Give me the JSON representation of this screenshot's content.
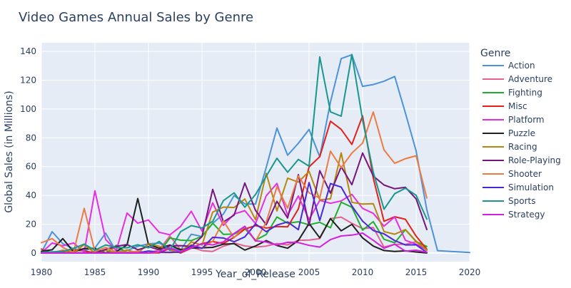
{
  "chart_data": {
    "type": "line",
    "title": "Video Games Annual Sales by Genre",
    "xlabel": "Year_of_Release",
    "ylabel": "Global Sales (in Millions)",
    "xlim": [
      1980,
      2020
    ],
    "ylim": [
      -6,
      146
    ],
    "xticks": [
      1980,
      1985,
      1990,
      1995,
      2000,
      2005,
      2010,
      2015,
      2020
    ],
    "yticks": [
      0,
      20,
      40,
      60,
      80,
      100,
      120,
      140
    ],
    "grid": true,
    "legend_title": "Genre",
    "legend_position": "right",
    "plot_background": "#E5ECF6",
    "series": [
      {
        "name": "Action",
        "color": "#4C92D8",
        "x": [
          1980,
          1981,
          1982,
          1983,
          1984,
          1985,
          1986,
          1987,
          1988,
          1989,
          1990,
          1991,
          1992,
          1993,
          1994,
          1995,
          1996,
          1997,
          1998,
          1999,
          2000,
          2001,
          2002,
          2003,
          2004,
          2005,
          2006,
          2007,
          2008,
          2009,
          2010,
          2011,
          2012,
          2013,
          2014,
          2015,
          2016,
          2017,
          2020
        ],
        "y": [
          0.3,
          14.8,
          6.5,
          2.9,
          1.8,
          3.5,
          13.8,
          1.1,
          1.7,
          4.6,
          6.4,
          6.8,
          3.5,
          1.9,
          13,
          11.5,
          20.6,
          27,
          39.9,
          34.1,
          34,
          59.4,
          86.8,
          67.9,
          76.2,
          85.8,
          66.8,
          104.9,
          135,
          137.7,
          115.7,
          117,
          119.3,
          122.6,
          97.2,
          70.9,
          30,
          1.6,
          0.3
        ]
      },
      {
        "name": "Adventure",
        "color": "#E8608F",
        "x": [
          1980,
          1981,
          1982,
          1983,
          1984,
          1985,
          1986,
          1987,
          1988,
          1989,
          1990,
          1991,
          1992,
          1993,
          1994,
          1995,
          1996,
          1997,
          1998,
          1999,
          2000,
          2001,
          2002,
          2003,
          2004,
          2005,
          2006,
          2007,
          2008,
          2009,
          2010,
          2011,
          2012,
          2013,
          2014,
          2015,
          2016
        ],
        "y": [
          0,
          0,
          1.9,
          0.4,
          0,
          0,
          0,
          4.4,
          0.2,
          0,
          0,
          2.2,
          11.8,
          2.3,
          4.2,
          1.6,
          1.1,
          4.7,
          6.9,
          4.9,
          4.1,
          4.8,
          6.6,
          5.6,
          8.8,
          9,
          10,
          23.9,
          24.9,
          20.6,
          16.9,
          17.7,
          4.1,
          6,
          6,
          7.8,
          1.8
        ]
      },
      {
        "name": "Fighting",
        "color": "#1FAF2A",
        "x": [
          1980,
          1981,
          1982,
          1983,
          1984,
          1985,
          1986,
          1987,
          1988,
          1989,
          1990,
          1991,
          1992,
          1993,
          1994,
          1995,
          1996,
          1997,
          1998,
          1999,
          2000,
          2001,
          2002,
          2003,
          2004,
          2005,
          2006,
          2007,
          2008,
          2009,
          2010,
          2011,
          2012,
          2013,
          2014,
          2015,
          2016
        ],
        "y": [
          0.8,
          0,
          0,
          0,
          0,
          1,
          0,
          5.4,
          0,
          0,
          0,
          0.4,
          10.4,
          8.9,
          8.6,
          11.6,
          20.7,
          12.9,
          13.1,
          16.9,
          8.9,
          12.8,
          25,
          20.7,
          21.7,
          19.6,
          21.3,
          17.5,
          35.3,
          31.8,
          15.9,
          21.8,
          9.5,
          7.1,
          16.2,
          7.9,
          4.5
        ]
      },
      {
        "name": "Misc",
        "color": "#E3201B",
        "x": [
          1980,
          1981,
          1982,
          1983,
          1984,
          1985,
          1986,
          1987,
          1988,
          1989,
          1990,
          1991,
          1992,
          1993,
          1994,
          1995,
          1996,
          1997,
          1998,
          1999,
          2000,
          2001,
          2002,
          2003,
          2004,
          2005,
          2006,
          2007,
          2008,
          2009,
          2010,
          2011,
          2012,
          2013,
          2014,
          2015,
          2016
        ],
        "y": [
          2.7,
          0,
          0.9,
          2.1,
          1.5,
          0,
          0,
          0,
          0,
          1.3,
          0,
          0,
          3.2,
          0,
          3.3,
          6.6,
          7.9,
          6.6,
          10.9,
          16.6,
          19,
          17.3,
          18.4,
          18.1,
          30.6,
          59.8,
          66.9,
          91.5,
          85.9,
          75.4,
          95.2,
          52,
          22,
          25.2,
          23.4,
          11.7,
          2.6
        ]
      },
      {
        "name": "Platform",
        "color": "#E52DE1",
        "x": [
          1980,
          1981,
          1982,
          1983,
          1984,
          1985,
          1986,
          1987,
          1988,
          1989,
          1990,
          1991,
          1992,
          1993,
          1994,
          1995,
          1996,
          1997,
          1998,
          1999,
          2000,
          2001,
          2002,
          2003,
          2004,
          2005,
          2006,
          2007,
          2008,
          2009,
          2010,
          2011,
          2012,
          2013,
          2014,
          2015,
          2016
        ],
        "y": [
          0,
          6.9,
          5,
          6.9,
          0.7,
          43.2,
          9.4,
          1.7,
          27.7,
          20.7,
          22.9,
          14.4,
          12.6,
          18.4,
          29,
          15.2,
          34.8,
          19.2,
          27,
          29.4,
          20.4,
          39.7,
          48.3,
          26.3,
          39.6,
          23.2,
          36.6,
          34.5,
          36.2,
          40.7,
          31,
          27.5,
          18.6,
          25,
          8.8,
          6.1,
          2.2
        ]
      },
      {
        "name": "Puzzle",
        "color": "#1F1F1F",
        "x": [
          1980,
          1981,
          1982,
          1983,
          1984,
          1985,
          1986,
          1987,
          1988,
          1989,
          1990,
          1991,
          1992,
          1993,
          1994,
          1995,
          1996,
          1997,
          1998,
          1999,
          2000,
          2001,
          2002,
          2003,
          2004,
          2005,
          2006,
          2007,
          2008,
          2009,
          2010,
          2011,
          2012,
          2013,
          2014,
          2015,
          2016
        ],
        "y": [
          1.2,
          2.2,
          10,
          0.8,
          3.1,
          3.2,
          0,
          1.1,
          5.6,
          37.8,
          6,
          3.3,
          5.5,
          2.2,
          3.4,
          3.6,
          3.9,
          6.1,
          6.5,
          2,
          4.9,
          8.6,
          5.2,
          3.3,
          8.7,
          20.5,
          10.5,
          23.9,
          15.4,
          19.9,
          10.5,
          4.8,
          1.7,
          1.1,
          1.5,
          0.7,
          0
        ]
      },
      {
        "name": "Racing",
        "color": "#B8860B",
        "x": [
          1980,
          1981,
          1982,
          1983,
          1984,
          1985,
          1986,
          1987,
          1988,
          1989,
          1990,
          1991,
          1992,
          1993,
          1994,
          1995,
          1996,
          1997,
          1998,
          1999,
          2000,
          2001,
          2002,
          2003,
          2004,
          2005,
          2006,
          2007,
          2008,
          2009,
          2010,
          2011,
          2012,
          2013,
          2014,
          2015,
          2016
        ],
        "y": [
          0,
          0.5,
          1.6,
          0,
          5.9,
          0,
          1.9,
          0,
          2.1,
          0,
          6.3,
          4.7,
          1.9,
          0.4,
          7.7,
          5.5,
          28.4,
          31.9,
          31.6,
          37.5,
          23.1,
          55.3,
          29.2,
          52,
          49.2,
          56.7,
          36.9,
          37.6,
          69.5,
          35.2,
          34,
          34.2,
          14.9,
          13,
          16.3,
          8.2,
          2
        ]
      },
      {
        "name": "Role-Playing",
        "color": "#74167D",
        "x": [
          1980,
          1981,
          1982,
          1983,
          1984,
          1985,
          1986,
          1987,
          1988,
          1989,
          1990,
          1991,
          1992,
          1993,
          1994,
          1995,
          1996,
          1997,
          1998,
          1999,
          2000,
          2001,
          2002,
          2003,
          2004,
          2005,
          2006,
          2007,
          2008,
          2009,
          2010,
          2011,
          2012,
          2013,
          2014,
          2015,
          2016
        ],
        "y": [
          0,
          0,
          0,
          0,
          0,
          0,
          2.5,
          4.6,
          5.9,
          2.2,
          4.5,
          2.2,
          5,
          5.1,
          4.6,
          11.4,
          44.2,
          21.6,
          26.3,
          48.6,
          29.6,
          19.6,
          35.9,
          24.3,
          54.4,
          19.1,
          57.2,
          41.6,
          59.9,
          47.4,
          69.4,
          53.4,
          47.2,
          44.6,
          45.6,
          37.6,
          16.3
        ]
      },
      {
        "name": "Shooter",
        "color": "#EC7B43",
        "x": [
          1980,
          1981,
          1982,
          1983,
          1984,
          1985,
          1986,
          1987,
          1988,
          1989,
          1990,
          1991,
          1992,
          1993,
          1994,
          1995,
          1996,
          1997,
          1998,
          1999,
          2000,
          2001,
          2002,
          2003,
          2004,
          2005,
          2006,
          2007,
          2008,
          2009,
          2010,
          2011,
          2012,
          2013,
          2014,
          2015,
          2016
        ],
        "y": [
          7.1,
          10,
          3.8,
          0.5,
          31,
          1,
          3.9,
          0.7,
          0.5,
          1.2,
          0,
          0.4,
          0.2,
          0.8,
          5.7,
          3.4,
          8.1,
          22.2,
          10.6,
          18.5,
          8.1,
          21.4,
          46.1,
          31.2,
          53.5,
          41.8,
          38.1,
          70.7,
          59.3,
          69.4,
          76.3,
          97.9,
          71.6,
          62.3,
          65.5,
          67.5,
          38.2
        ]
      },
      {
        "name": "Simulation",
        "color": "#4926D8",
        "x": [
          1980,
          1981,
          1982,
          1983,
          1984,
          1985,
          1986,
          1987,
          1988,
          1989,
          1990,
          1991,
          1992,
          1993,
          1994,
          1995,
          1996,
          1997,
          1998,
          1999,
          2000,
          2001,
          2002,
          2003,
          2004,
          2005,
          2006,
          2007,
          2008,
          2009,
          2010,
          2011,
          2012,
          2013,
          2014,
          2015,
          2016
        ],
        "y": [
          0,
          0.5,
          0,
          0,
          0,
          0.1,
          0,
          0,
          0.1,
          0,
          1.4,
          0.6,
          0.5,
          0.5,
          5.3,
          3.2,
          10.9,
          10.4,
          7.8,
          11.2,
          20.2,
          14.8,
          19.4,
          21.6,
          16.2,
          48.9,
          22.5,
          48.2,
          45.8,
          32.6,
          22.1,
          15.6,
          13.3,
          8.6,
          5.6,
          5.7,
          0.4
        ]
      },
      {
        "name": "Sports",
        "color": "#18978A",
        "x": [
          1980,
          1981,
          1982,
          1983,
          1984,
          1985,
          1986,
          1987,
          1988,
          1989,
          1990,
          1991,
          1992,
          1993,
          1994,
          1995,
          1996,
          1997,
          1998,
          1999,
          2000,
          2001,
          2002,
          2003,
          2004,
          2005,
          2006,
          2007,
          2008,
          2009,
          2010,
          2011,
          2012,
          2013,
          2014,
          2015,
          2016
        ],
        "y": [
          0.5,
          0.8,
          1.1,
          3.2,
          6.2,
          1.9,
          5.6,
          3.7,
          3.6,
          5.7,
          3.6,
          8,
          1.9,
          14.8,
          19,
          17.3,
          22,
          36.4,
          41.8,
          31.8,
          40.6,
          53.3,
          65.8,
          56.1,
          65,
          60.3,
          136.2,
          98,
          95,
          137.9,
          92.4,
          56.1,
          30.4,
          41.2,
          45,
          40.1,
          23.5
        ]
      },
      {
        "name": "Strategy",
        "color": "#D31FE0",
        "x": [
          1980,
          1981,
          1982,
          1983,
          1984,
          1985,
          1986,
          1987,
          1988,
          1989,
          1990,
          1991,
          1992,
          1993,
          1994,
          1995,
          1996,
          1997,
          1998,
          1999,
          2000,
          2001,
          2002,
          2003,
          2004,
          2005,
          2006,
          2007,
          2008,
          2009,
          2010,
          2011,
          2012,
          2013,
          2014,
          2015,
          2016
        ],
        "y": [
          0,
          0,
          0,
          0,
          0,
          0,
          0,
          0,
          0,
          0,
          0,
          0.9,
          3.4,
          0.8,
          3.5,
          6.5,
          5.6,
          7.7,
          13.5,
          18.5,
          8.5,
          7.6,
          5.6,
          7.4,
          7.2,
          5.3,
          4.1,
          9.3,
          11.8,
          12.4,
          13.8,
          8.8,
          3.3,
          6.1,
          1.3,
          1.9,
          0.5
        ]
      }
    ]
  }
}
